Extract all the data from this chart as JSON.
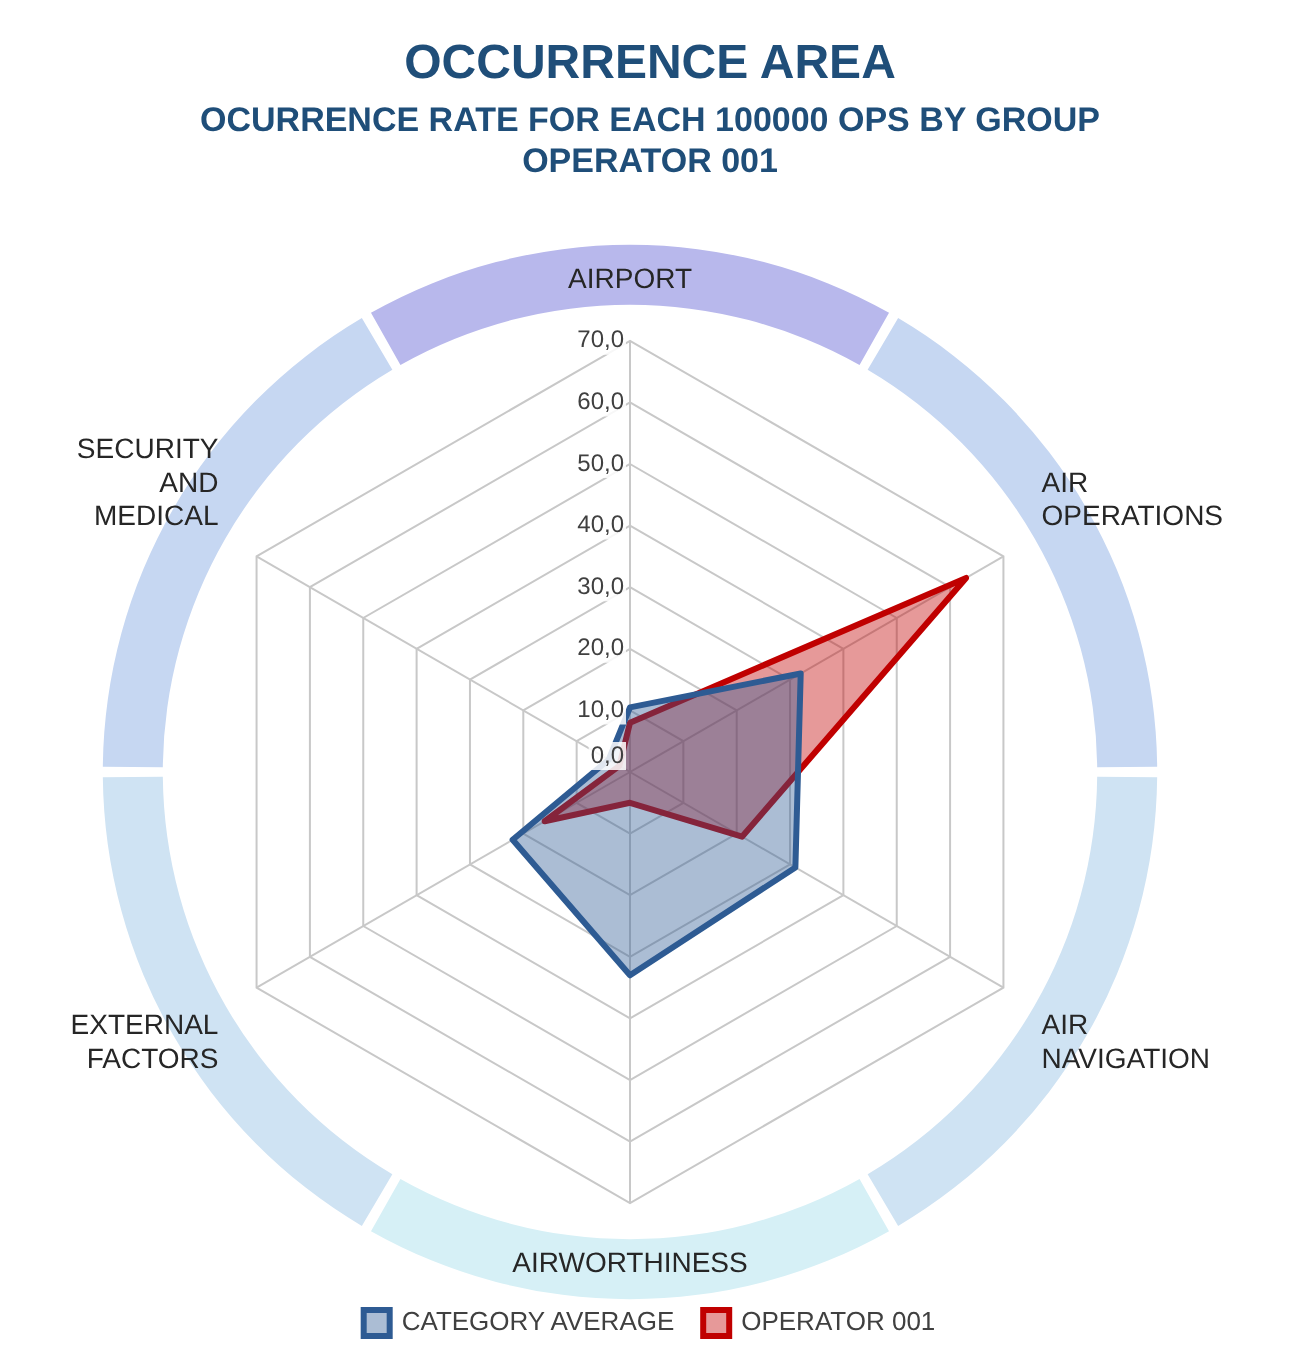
{
  "chart_data": {
    "type": "radar",
    "title": "OCCURRENCE AREA",
    "subtitle": "OCURRENCE RATE FOR EACH 100000 OPS BY GROUP\nOPERATOR 001",
    "categories": [
      "AIRPORT",
      "AIR OPERATIONS",
      "AIR NAVIGATION",
      "AIRWORTHINESS",
      "EXTERNAL FACTORS",
      "SECURITY AND MEDICAL"
    ],
    "series": [
      {
        "name": "CATEGORY AVERAGE",
        "color": "#2e5b93",
        "values": [
          10.5,
          32,
          31,
          33,
          22,
          4
        ]
      },
      {
        "name": "OPERATOR 001",
        "color": "#c00000",
        "values": [
          8,
          63,
          21,
          5,
          16,
          2
        ]
      }
    ],
    "ylim": [
      0,
      70
    ],
    "yticks": [
      {
        "value": 0,
        "label": "0,0"
      },
      {
        "value": 10,
        "label": "10,0"
      },
      {
        "value": 20,
        "label": "20,0"
      },
      {
        "value": 30,
        "label": "30,0"
      },
      {
        "value": 40,
        "label": "40,0"
      },
      {
        "value": 50,
        "label": "50,0"
      },
      {
        "value": 60,
        "label": "60,0"
      },
      {
        "value": 70,
        "label": "70,0"
      }
    ],
    "grid": true,
    "legend": "bottom"
  }
}
